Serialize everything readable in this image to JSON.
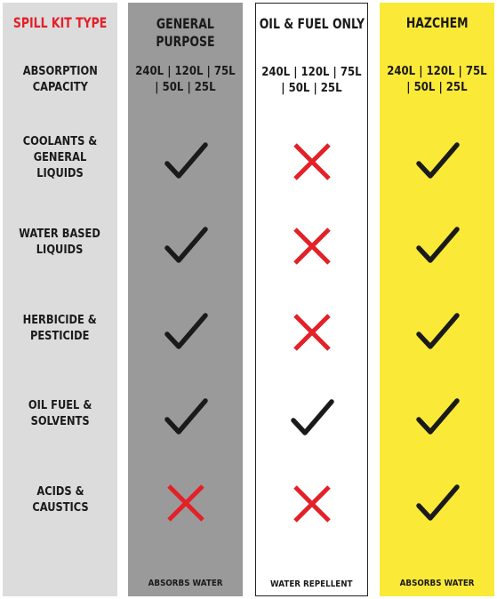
{
  "headers": {
    "label": "SPILL KIT TYPE",
    "general": "GENERAL\nPURPOSE",
    "oil": "OIL & FUEL ONLY",
    "hazchem": "HAZCHEM"
  },
  "rows": [
    {
      "label": "ABSORPTION\nCAPACITY"
    },
    {
      "label": "COOLANTS &\nGENERAL\nLIQUIDS"
    },
    {
      "label": "WATER BASED\nLIQUIDS"
    },
    {
      "label": "HERBICIDE &\nPESTICIDE"
    },
    {
      "label": "OIL FUEL &\nSOLVENTS"
    },
    {
      "label": "ACIDS &\nCAUSTICS"
    }
  ],
  "capacity": {
    "general": "240L | 120L | 75L\n| 50L | 25L",
    "oil": "240L | 120L | 75L\n| 50L | 25L",
    "hazchem": "240L | 120L | 75L\n| 50L | 25L"
  },
  "marks": {
    "general": [
      "check",
      "check",
      "check",
      "check",
      "cross"
    ],
    "oil": [
      "cross",
      "cross",
      "cross",
      "check",
      "cross"
    ],
    "hazchem": [
      "check",
      "check",
      "check",
      "check",
      "check"
    ]
  },
  "footers": {
    "general": "ABSORBS WATER",
    "oil": "WATER REPELLENT",
    "hazchem": "ABSORBS WATER"
  },
  "colors": {
    "label_column": "#dcdcdd",
    "general_column": "#9a9a9b",
    "oil_column": "#ffffff",
    "hazchem_column": "#fbe937",
    "title_red": "#e32128",
    "check": "#1a1a1a",
    "cross": "#e32128"
  }
}
